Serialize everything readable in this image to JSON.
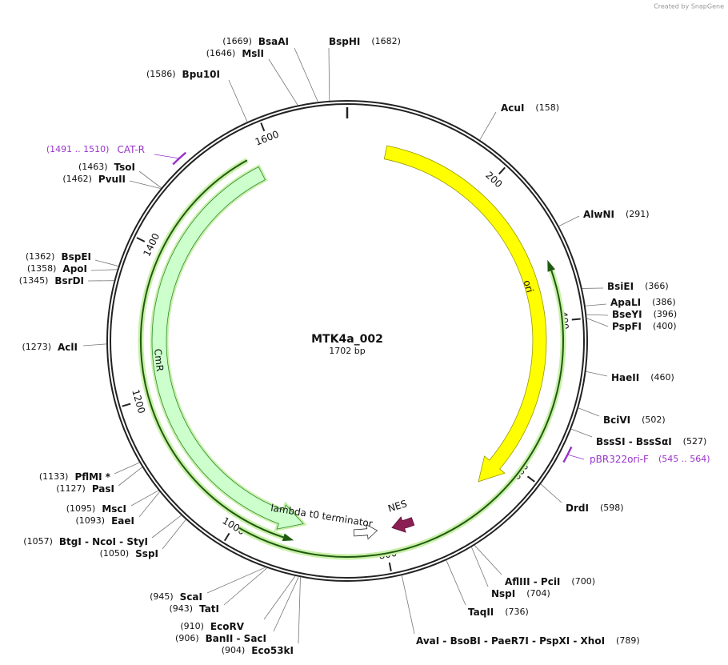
{
  "credit": "Created by SnapGene",
  "map": {
    "name": "MTK4a_002",
    "length": {
      "value": 1702,
      "label": "1702 bp"
    },
    "ticks": [
      200,
      400,
      600,
      800,
      1000,
      1200,
      1400,
      1600
    ],
    "features": [
      {
        "name": "ori"
      },
      {
        "name": "CmR"
      },
      {
        "name": "lambda t0 terminator"
      },
      {
        "name": "NES"
      }
    ],
    "primers": [
      {
        "name": "CAT-R",
        "start": 1491,
        "end": 1510,
        "label": "(1491 .. 1510)"
      },
      {
        "name": "pBR322ori-F",
        "start": 545,
        "end": 564,
        "label": "(545 .. 564)"
      }
    ],
    "sites": [
      {
        "name": "AcuI",
        "position": {
          "value": 158,
          "label": "(158)"
        }
      },
      {
        "name": "AlwNI",
        "position": {
          "value": 291,
          "label": "(291)"
        }
      },
      {
        "name": "BsiEI",
        "position": {
          "value": 366,
          "label": "(366)"
        }
      },
      {
        "name": "ApaLI",
        "position": {
          "value": 386,
          "label": "(386)"
        }
      },
      {
        "name": "BseYI",
        "position": {
          "value": 396,
          "label": "(396)"
        }
      },
      {
        "name": "PspFI",
        "position": {
          "value": 400,
          "label": "(400)"
        }
      },
      {
        "name": "HaeII",
        "position": {
          "value": 460,
          "label": "(460)"
        }
      },
      {
        "name": "BciVI",
        "position": {
          "value": 502,
          "label": "(502)"
        }
      },
      {
        "name": "BssSI - BssSαI",
        "position": {
          "value": 527,
          "label": "(527)"
        }
      },
      {
        "name": "DrdI",
        "position": {
          "value": 598,
          "label": "(598)"
        }
      },
      {
        "name": "AflIII - PciI",
        "position": {
          "value": 700,
          "label": "(700)"
        }
      },
      {
        "name": "NspI",
        "position": {
          "value": 704,
          "label": "(704)"
        }
      },
      {
        "name": "TaqII",
        "position": {
          "value": 736,
          "label": "(736)"
        }
      },
      {
        "name": "AvaI - BsoBI - PaeR7I - PspXI - XhoI",
        "position": {
          "value": 789,
          "label": "(789)"
        }
      },
      {
        "name": "BspHI",
        "position": {
          "value": 1682,
          "label": "(1682)"
        }
      },
      {
        "name": "BsaAI",
        "position": {
          "value": 1669,
          "label": "(1669)"
        }
      },
      {
        "name": "MslI",
        "position": {
          "value": 1646,
          "label": "(1646)"
        }
      },
      {
        "name": "Bpu10I",
        "position": {
          "value": 1586,
          "label": "(1586)"
        }
      },
      {
        "name": "TsoI",
        "position": {
          "value": 1463,
          "label": "(1463)"
        }
      },
      {
        "name": "PvuII",
        "position": {
          "value": 1462,
          "label": "(1462)"
        }
      },
      {
        "name": "BspEI",
        "position": {
          "value": 1362,
          "label": "(1362)"
        }
      },
      {
        "name": "ApoI",
        "position": {
          "value": 1358,
          "label": "(1358)"
        }
      },
      {
        "name": "BsrDI",
        "position": {
          "value": 1345,
          "label": "(1345)"
        }
      },
      {
        "name": "AclI",
        "position": {
          "value": 1273,
          "label": "(1273)"
        }
      },
      {
        "name": "PflMI *",
        "position": {
          "value": 1133,
          "label": "(1133)"
        }
      },
      {
        "name": "PasI",
        "position": {
          "value": 1127,
          "label": "(1127)"
        }
      },
      {
        "name": "MscI",
        "position": {
          "value": 1095,
          "label": "(1095)"
        }
      },
      {
        "name": "EaeI",
        "position": {
          "value": 1093,
          "label": "(1093)"
        }
      },
      {
        "name": "BtgI - NcoI - StyI",
        "position": {
          "value": 1057,
          "label": "(1057)"
        }
      },
      {
        "name": "SspI",
        "position": {
          "value": 1050,
          "label": "(1050)"
        }
      },
      {
        "name": "ScaI",
        "position": {
          "value": 945,
          "label": "(945)"
        }
      },
      {
        "name": "TatI",
        "position": {
          "value": 943,
          "label": "(943)"
        }
      },
      {
        "name": "EcoRV",
        "position": {
          "value": 910,
          "label": "(910)"
        }
      },
      {
        "name": "BanII - SacI",
        "position": {
          "value": 906,
          "label": "(906)"
        }
      },
      {
        "name": "Eco53kI",
        "position": {
          "value": 904,
          "label": "(904)"
        }
      }
    ]
  }
}
